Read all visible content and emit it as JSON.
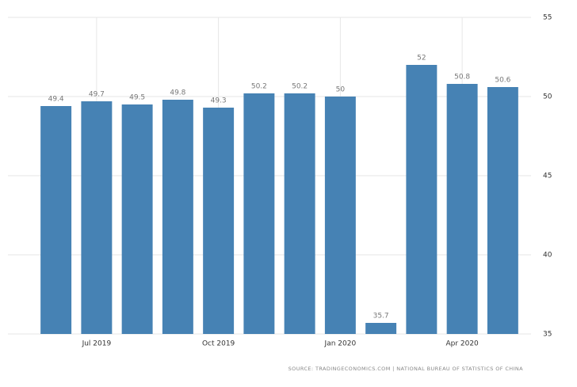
{
  "chart_data": {
    "type": "bar",
    "categories": [
      null,
      "Jul 2019",
      null,
      null,
      "Oct 2019",
      null,
      null,
      "Jan 2020",
      null,
      null,
      "Apr 2020",
      null
    ],
    "values": [
      49.4,
      49.7,
      49.5,
      49.8,
      49.3,
      50.2,
      50.2,
      50,
      35.7,
      52,
      50.8,
      50.6
    ],
    "color": "#4682b4",
    "ylim": [
      35,
      55
    ],
    "yticks": [
      35,
      40,
      45,
      50,
      55
    ],
    "grid": true,
    "source": "SOURCE: TRADINGECONOMICS.COM | NATIONAL BUREAU OF STATISTICS OF CHINA"
  }
}
